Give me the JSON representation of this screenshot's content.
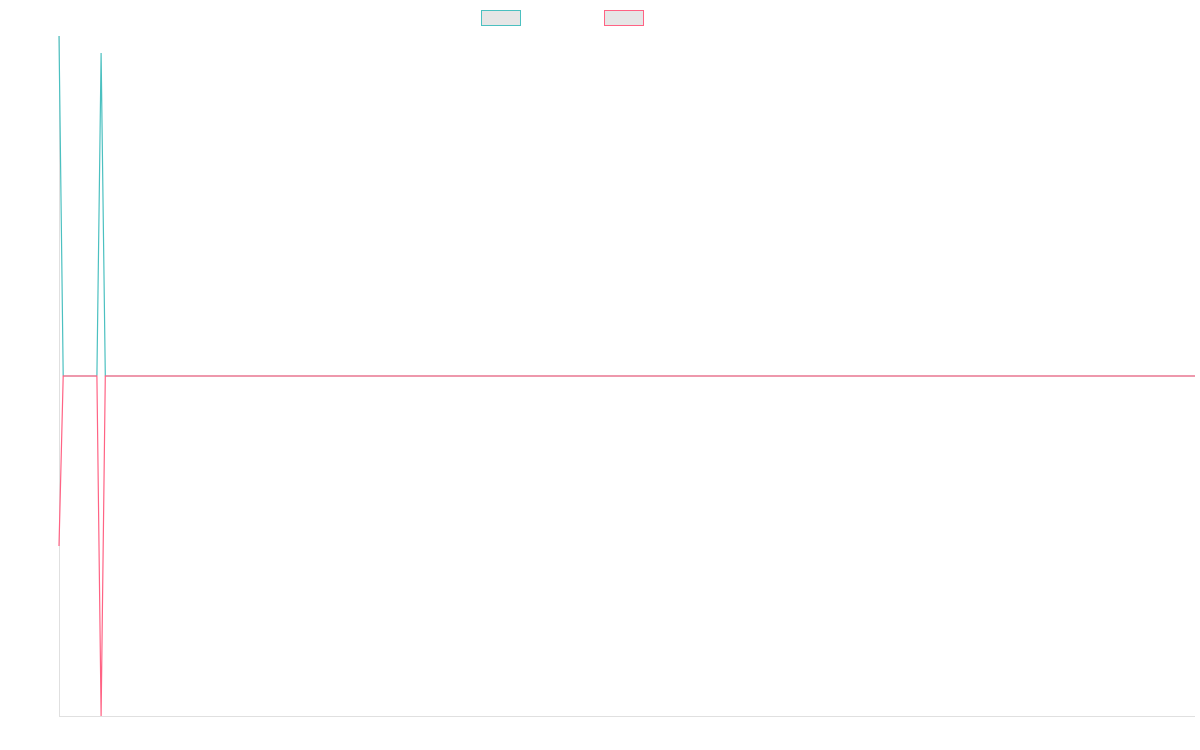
{
  "chart_data": {
    "type": "line",
    "x": [
      0,
      1,
      9,
      10,
      11,
      270
    ],
    "xlim": [
      0,
      270
    ],
    "ylim": [
      -1,
      1
    ],
    "series": [
      {
        "color": "#4bc0c0",
        "values": [
          1,
          0,
          0,
          0.95,
          0,
          0
        ]
      },
      {
        "color": "#ff6384",
        "values": [
          -0.5,
          0,
          0,
          -1,
          0,
          0
        ]
      }
    ]
  }
}
